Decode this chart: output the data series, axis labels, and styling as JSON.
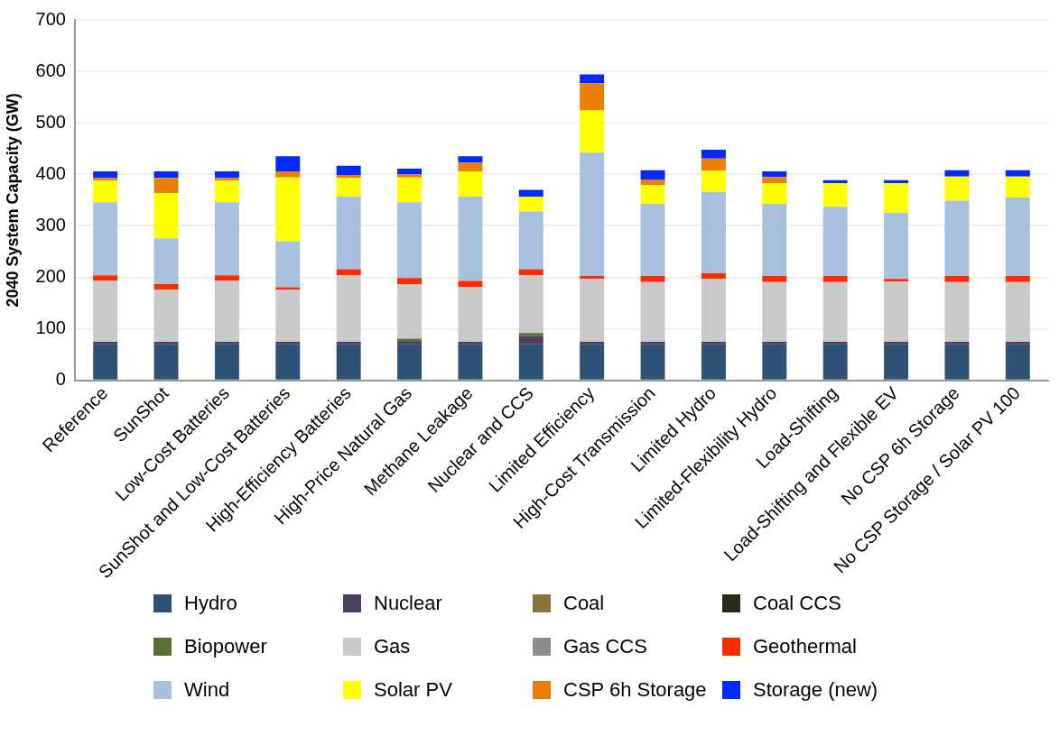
{
  "chart_data": {
    "type": "bar",
    "stacked": true,
    "ylabel": "2040 System Capacity (GW)",
    "ylim": [
      0,
      700
    ],
    "yticks": [
      0,
      100,
      200,
      300,
      400,
      500,
      600,
      700
    ],
    "grid": "y",
    "legend": "bottom",
    "categories": [
      "Reference",
      "SunShot",
      "Low-Cost Batteries",
      "SunShot and Low-Cost Batteries",
      "High-Efficiency Batteries",
      "High-Price Natural Gas",
      "Methane Leakage",
      "Nuclear and CCS",
      "Limited Efficiency",
      "High-Cost Transmission",
      "Limited Hydro",
      "Limited-Flexibility Hydro",
      "Load-Shifting",
      "Load-Shifting and Flexible EV",
      "No CSP 6h Storage",
      "No CSP Storage / Solar PV 100"
    ],
    "series": [
      {
        "name": "Hydro",
        "color": "#2e5275",
        "values": [
          70,
          70,
          70,
          70,
          70,
          70,
          70,
          70,
          70,
          70,
          70,
          70,
          70,
          70,
          70,
          70
        ]
      },
      {
        "name": "Nuclear",
        "color": "#4d3f5f",
        "values": [
          5,
          5,
          5,
          5,
          5,
          5,
          5,
          16,
          5,
          5,
          5,
          5,
          5,
          5,
          5,
          5
        ]
      },
      {
        "name": "Coal",
        "color": "#8b7040",
        "values": [
          0,
          0,
          0,
          0,
          0,
          0,
          0,
          0,
          0,
          0,
          0,
          0,
          0,
          0,
          0,
          0
        ]
      },
      {
        "name": "Coal CCS",
        "color": "#2a2a1a",
        "values": [
          0,
          0,
          0,
          0,
          0,
          0,
          0,
          0,
          0,
          0,
          0,
          0,
          0,
          0,
          0,
          0
        ]
      },
      {
        "name": "Biopower",
        "color": "#5a7030",
        "values": [
          0,
          0,
          0,
          0,
          0,
          6,
          0,
          6,
          0,
          0,
          0,
          0,
          0,
          0,
          0,
          0
        ]
      },
      {
        "name": "Gas",
        "color": "#c9c9c9",
        "values": [
          118,
          101,
          118,
          101,
          129,
          106,
          106,
          112,
          122,
          116,
          122,
          116,
          116,
          117,
          116,
          116
        ]
      },
      {
        "name": "Gas CCS",
        "color": "#8c8c8c",
        "values": [
          0,
          0,
          0,
          0,
          0,
          0,
          0,
          0,
          0,
          0,
          0,
          0,
          0,
          0,
          0,
          0
        ]
      },
      {
        "name": "Geothermal",
        "color": "#ff2a00",
        "values": [
          11,
          11,
          11,
          5,
          12,
          12,
          12,
          12,
          6,
          12,
          11,
          12,
          12,
          5,
          12,
          12
        ]
      },
      {
        "name": "Wind",
        "color": "#a7c0de",
        "values": [
          142,
          89,
          142,
          89,
          141,
          147,
          164,
          112,
          239,
          140,
          158,
          140,
          134,
          129,
          146,
          152
        ]
      },
      {
        "name": "Solar PV",
        "color": "#ffff00",
        "values": [
          42,
          88,
          42,
          124,
          36,
          48,
          49,
          29,
          82,
          36,
          41,
          40,
          46,
          57,
          47,
          41
        ]
      },
      {
        "name": "CSP 6h Storage",
        "color": "#e97e00",
        "values": [
          5,
          29,
          5,
          12,
          6,
          6,
          17,
          0,
          53,
          11,
          24,
          12,
          0,
          0,
          0,
          0
        ]
      },
      {
        "name": "Storage (new)",
        "color": "#0029ff",
        "values": [
          13,
          13,
          13,
          29,
          18,
          11,
          12,
          13,
          17,
          18,
          17,
          11,
          6,
          6,
          12,
          12
        ]
      }
    ]
  }
}
